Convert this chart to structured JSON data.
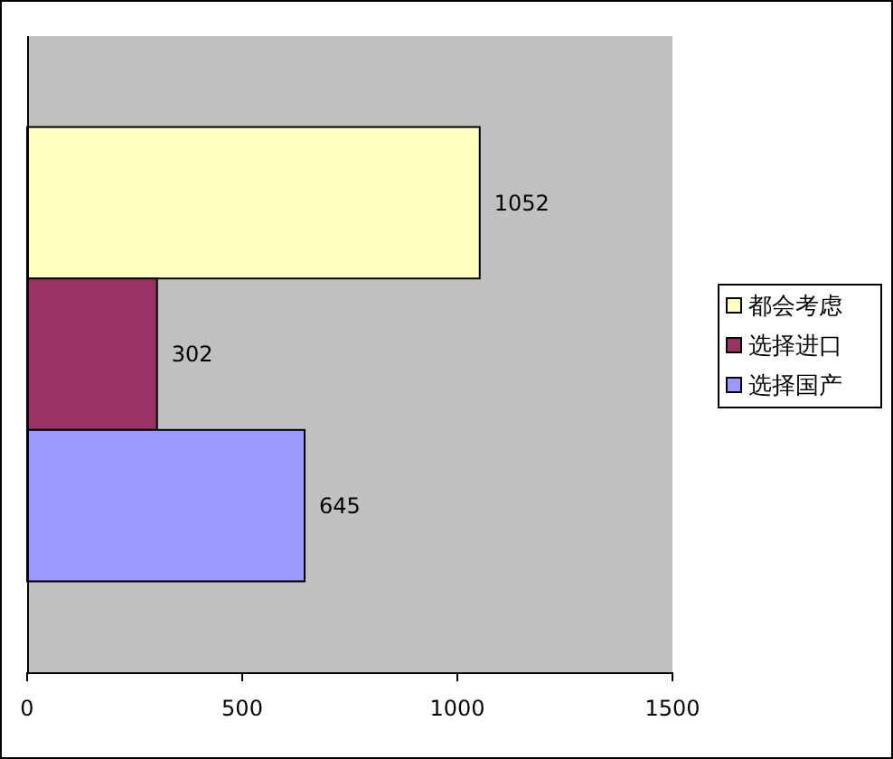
{
  "chart_data": {
    "type": "bar",
    "orientation": "horizontal",
    "categories": [
      null
    ],
    "series": [
      {
        "name": "都会考虑",
        "color": "#ffffc0",
        "values": [
          1052
        ]
      },
      {
        "name": "选择进口",
        "color": "#993366",
        "values": [
          302
        ]
      },
      {
        "name": "选择国产",
        "color": "#9999ff",
        "values": [
          645
        ]
      }
    ],
    "xlim": [
      0,
      1500
    ],
    "xticks": [
      0,
      500,
      1000,
      1500
    ],
    "grid": false,
    "legend": "right",
    "data_labels": true
  }
}
